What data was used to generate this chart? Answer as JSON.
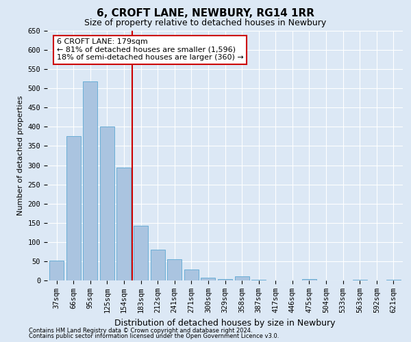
{
  "title": "6, CROFT LANE, NEWBURY, RG14 1RR",
  "subtitle": "Size of property relative to detached houses in Newbury",
  "xlabel": "Distribution of detached houses by size in Newbury",
  "ylabel": "Number of detached properties",
  "categories": [
    "37sqm",
    "66sqm",
    "95sqm",
    "125sqm",
    "154sqm",
    "183sqm",
    "212sqm",
    "241sqm",
    "271sqm",
    "300sqm",
    "329sqm",
    "358sqm",
    "387sqm",
    "417sqm",
    "446sqm",
    "475sqm",
    "504sqm",
    "533sqm",
    "563sqm",
    "592sqm",
    "621sqm"
  ],
  "values": [
    51,
    375,
    518,
    400,
    293,
    142,
    81,
    56,
    28,
    8,
    3,
    10,
    1,
    0,
    0,
    3,
    0,
    0,
    1,
    0,
    1
  ],
  "bar_color": "#aac4e0",
  "bar_edge_color": "#6aaed6",
  "vline_color": "#cc0000",
  "annotation_text": "6 CROFT LANE: 179sqm\n← 81% of detached houses are smaller (1,596)\n18% of semi-detached houses are larger (360) →",
  "annotation_box_color": "#ffffff",
  "annotation_box_edge_color": "#cc0000",
  "ylim": [
    0,
    650
  ],
  "yticks": [
    0,
    50,
    100,
    150,
    200,
    250,
    300,
    350,
    400,
    450,
    500,
    550,
    600,
    650
  ],
  "background_color": "#dce8f5",
  "plot_bg_color": "#dce8f5",
  "grid_color": "#ffffff",
  "footnote1": "Contains HM Land Registry data © Crown copyright and database right 2024.",
  "footnote2": "Contains public sector information licensed under the Open Government Licence v3.0.",
  "title_fontsize": 11,
  "subtitle_fontsize": 9,
  "ylabel_fontsize": 8,
  "xlabel_fontsize": 9,
  "tick_fontsize": 7.5,
  "annot_fontsize": 8
}
